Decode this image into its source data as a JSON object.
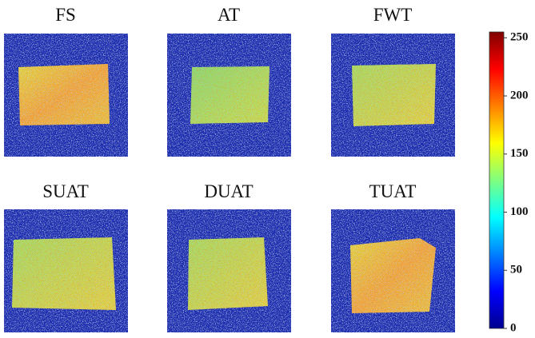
{
  "panels": [
    {
      "title": "FS"
    },
    {
      "title": "AT"
    },
    {
      "title": "FWT"
    },
    {
      "title": "SUAT"
    },
    {
      "title": "DUAT"
    },
    {
      "title": "TUAT"
    }
  ],
  "colorbar": {
    "lim": [
      0,
      255
    ],
    "ticks": [
      0,
      50,
      100,
      150,
      200,
      250
    ]
  }
}
